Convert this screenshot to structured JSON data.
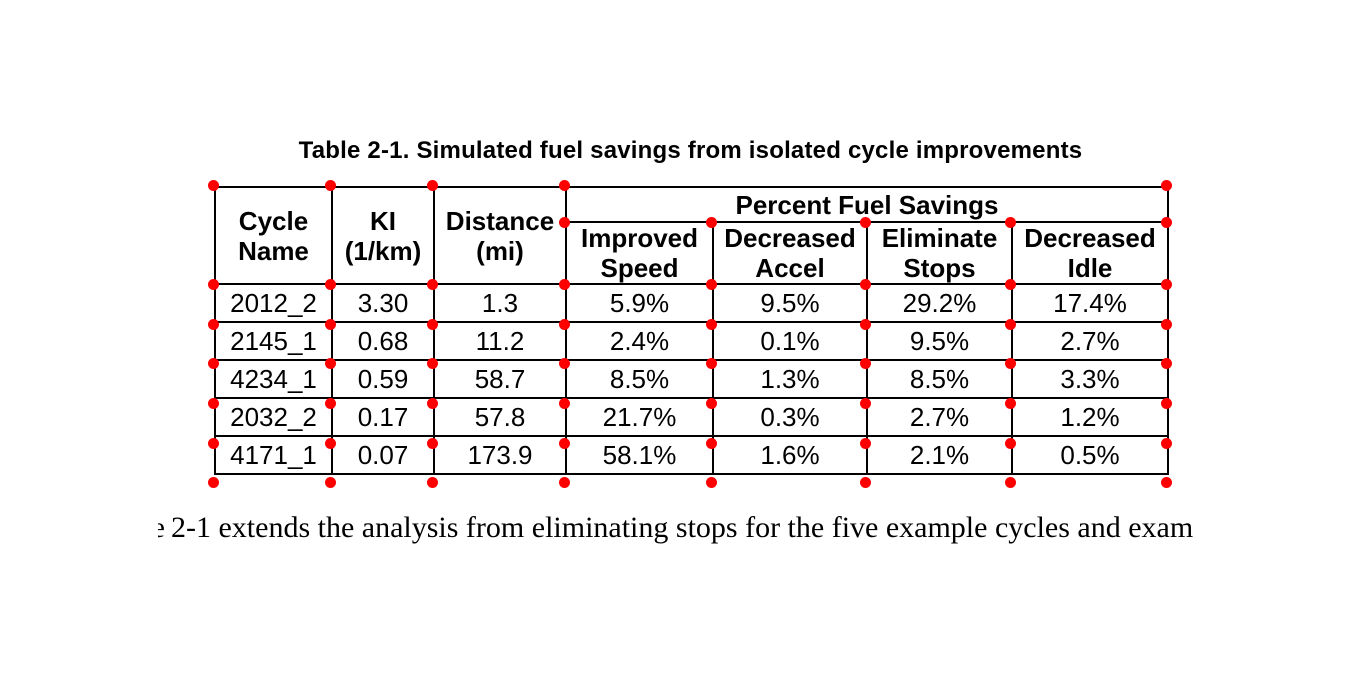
{
  "title": "Table 2-1. Simulated fuel savings from isolated cycle improvements",
  "table": {
    "headers": [
      {
        "lines": [
          "Cycle",
          "Name"
        ]
      },
      {
        "lines": [
          "KI",
          "(1/km)"
        ]
      },
      {
        "lines": [
          "Distance",
          "(mi)"
        ]
      }
    ],
    "group_header": "Percent Fuel Savings",
    "sub_headers": [
      {
        "lines": [
          "Improved",
          "Speed"
        ]
      },
      {
        "lines": [
          "Decreased",
          "Accel"
        ]
      },
      {
        "lines": [
          "Eliminate",
          "Stops"
        ]
      },
      {
        "lines": [
          "Decreased",
          "Idle"
        ]
      }
    ],
    "rows": [
      [
        "2012_2",
        "3.30",
        "1.3",
        "5.9%",
        "9.5%",
        "29.2%",
        "17.4%"
      ],
      [
        "2145_1",
        "0.68",
        "11.2",
        "2.4%",
        "0.1%",
        "9.5%",
        "2.7%"
      ],
      [
        "4234_1",
        "0.59",
        "58.7",
        "8.5%",
        "1.3%",
        "8.5%",
        "3.3%"
      ],
      [
        "2032_2",
        "0.17",
        "57.8",
        "21.7%",
        "0.3%",
        "2.7%",
        "1.2%"
      ],
      [
        "4171_1",
        "0.07",
        "173.9",
        "58.1%",
        "1.6%",
        "2.1%",
        "0.5%"
      ]
    ]
  },
  "annotation": {
    "dot_color": "#ff0000"
  },
  "footer": {
    "fragment": "e",
    "text": "2-1 extends the analysis from eliminating stops for the five example cycles and exam"
  }
}
